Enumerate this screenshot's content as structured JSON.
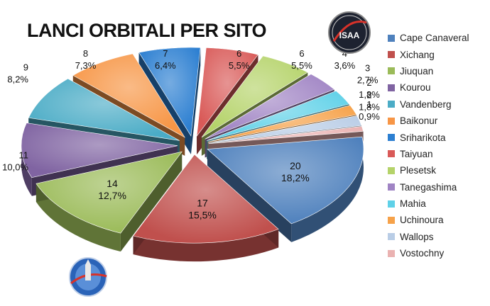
{
  "chart_data": {
    "type": "pie",
    "title": "LANCI ORBITALI PER SITO",
    "slices": [
      {
        "name": "Cape Canaveral",
        "value": 20,
        "percent": "18,2%",
        "color": "#4f81bd"
      },
      {
        "name": "Xichang",
        "value": 17,
        "percent": "15,5%",
        "color": "#c0504d"
      },
      {
        "name": "Jiuquan",
        "value": 14,
        "percent": "12,7%",
        "color": "#9bbb59"
      },
      {
        "name": "Kourou",
        "value": 11,
        "percent": "10,0%",
        "color": "#8064a2"
      },
      {
        "name": "Vandenberg",
        "value": 9,
        "percent": "8,2%",
        "color": "#4bacc6"
      },
      {
        "name": "Baikonur",
        "value": 8,
        "percent": "7,3%",
        "color": "#f79646"
      },
      {
        "name": "Sriharikota",
        "value": 7,
        "percent": "6,4%",
        "color": "#2c7fd1"
      },
      {
        "name": "Taiyuan",
        "value": 6,
        "percent": "5,5%",
        "color": "#d95a58"
      },
      {
        "name": "Plesetsk",
        "value": 6,
        "percent": "5,5%",
        "color": "#b5d36a"
      },
      {
        "name": "Tanegashima",
        "value": 4,
        "percent": "3,6%",
        "color": "#a084c4"
      },
      {
        "name": "Mahia",
        "value": 3,
        "percent": "2,7%",
        "color": "#5fd1e8"
      },
      {
        "name": "Uchinoura",
        "value": 2,
        "percent": "1,8%",
        "color": "#f6a24a"
      },
      {
        "name": "Wallops",
        "value": 2,
        "percent": "1,8%",
        "color": "#b9cde6"
      },
      {
        "name": "Vostochny",
        "value": 1,
        "percent": "0,9%",
        "color": "#eab2b1"
      }
    ],
    "legend_position": "right"
  },
  "logo_top": {
    "text": "ISAA"
  },
  "logo_bottom": {
    "name": "ISAA mission patch"
  }
}
